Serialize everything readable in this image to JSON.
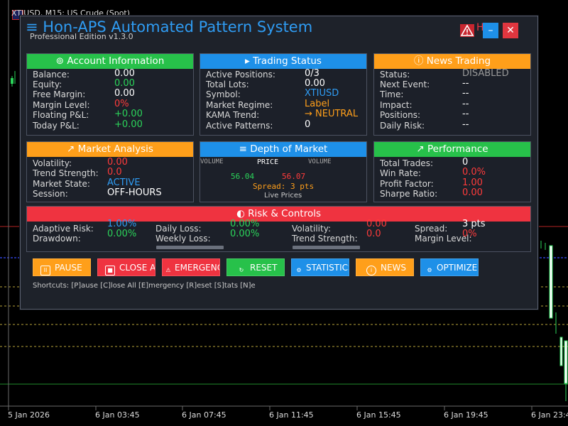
{
  "chart": {
    "title": "XTIUSD, M15:  US Crude (Spot)",
    "time_labels": [
      "5 Jan 2026",
      "6 Jan 03:45",
      "6 Jan 07:45",
      "6 Jan 11:45",
      "6 Jan 15:45",
      "6 Jan 19:45",
      "6 Jan 23:4"
    ]
  },
  "panel": {
    "menu_icon": "≡",
    "title": "Hon-APS Automated Pattern System",
    "subtitle": "Professional Edition v1.3.0",
    "alert_icon": "warning-icon",
    "header_overlap_text": "H",
    "minimize_glyph": "–",
    "close_glyph": "✕"
  },
  "account": {
    "title": "Account Information",
    "rows": [
      {
        "label": "Balance:",
        "value": "0.00",
        "color": "#ffffff"
      },
      {
        "label": "Equity:",
        "value": "0.00",
        "color": "#2bd45a"
      },
      {
        "label": "Free Margin:",
        "value": "0.00",
        "color": "#ffffff"
      },
      {
        "label": "Margin Level:",
        "value": "0%",
        "color": "#ff3b3b"
      },
      {
        "label": "Floating P&L:",
        "value": "+0.00",
        "color": "#2bd45a"
      },
      {
        "label": "Today P&L:",
        "value": "+0.00",
        "color": "#2bd45a"
      }
    ]
  },
  "trading": {
    "title": "Trading Status",
    "rows": [
      {
        "label": "Active Positions:",
        "value": "0/3",
        "color": "#ffffff"
      },
      {
        "label": "Total Lots:",
        "value": "0.00",
        "color": "#ffffff"
      },
      {
        "label": "Symbol:",
        "value": "XTIUSD",
        "color": "#2f9cf3"
      },
      {
        "label": "Market Regime:",
        "value": "Label",
        "color": "#ff9f1a"
      },
      {
        "label": "KAMA Trend:",
        "value": "→ NEUTRAL",
        "color": "#ff9f1a"
      },
      {
        "label": "Active Patterns:",
        "value": "0",
        "color": "#ffffff"
      }
    ]
  },
  "news": {
    "title": "News Trading",
    "rows": [
      {
        "label": "Status:",
        "value": "DISABLED",
        "color": "#9a9a9a"
      },
      {
        "label": "Next Event:",
        "value": "--",
        "color": "#ffffff"
      },
      {
        "label": "Time:",
        "value": "--",
        "color": "#ffffff"
      },
      {
        "label": "Impact:",
        "value": "--",
        "color": "#ffffff"
      },
      {
        "label": "Positions:",
        "value": "--",
        "color": "#ffffff"
      },
      {
        "label": "Daily Risk:",
        "value": "--",
        "color": "#ffffff"
      }
    ]
  },
  "market": {
    "title": "Market Analysis",
    "rows": [
      {
        "label": "Volatility:",
        "value": "0.00",
        "color": "#ff3b3b"
      },
      {
        "label": "Trend Strength:",
        "value": "0.0",
        "color": "#ff3b3b"
      },
      {
        "label": "Market State:",
        "value": "ACTIVE",
        "color": "#2f9cf3"
      },
      {
        "label": "Session:",
        "value": "OFF-HOURS",
        "color": "#ffffff"
      }
    ]
  },
  "depth": {
    "title": "Depth of Market",
    "col_volume_left": "VOLUME",
    "col_price": "PRICE",
    "col_volume_right": "VOLUME",
    "bid": "56.04",
    "ask": "56.07",
    "spread": "Spread: 3 pts",
    "footer": "Live Prices"
  },
  "performance": {
    "title": "Performance",
    "rows": [
      {
        "label": "Total Trades:",
        "value": "0",
        "color": "#ffffff"
      },
      {
        "label": "Win Rate:",
        "value": "0.0%",
        "color": "#ff3b3b"
      },
      {
        "label": "Profit Factor:",
        "value": "1.00",
        "color": "#ff3b3b"
      },
      {
        "label": "Sharpe Ratio:",
        "value": "0.00",
        "color": "#ff3b3b"
      }
    ]
  },
  "risk": {
    "title": "Risk & Controls",
    "adaptive_label": "Adaptive Risk:",
    "adaptive_value": "1.00%",
    "drawdown_label": "Drawdown:",
    "drawdown_value": "0.00%",
    "daily_loss_label": "Daily Loss:",
    "daily_loss_value": "0.00%",
    "weekly_loss_label": "Weekly Loss:",
    "weekly_loss_value": "0.00%",
    "volatility_label": "Volatility:",
    "volatility_value": "0.00",
    "trend_label": "Trend Strength:",
    "trend_value": "0.0",
    "spread_label": "Spread:",
    "spread_value": "3 pts",
    "margin_label": "Margin Level:",
    "margin_value": "0%"
  },
  "buttons": [
    {
      "label": "PAUSE",
      "icon": "pause-icon",
      "glyph": "II",
      "color": "#ff9f1a"
    },
    {
      "label": "CLOSE ALL",
      "icon": "stop-icon",
      "glyph": "■",
      "color": "#ef3340"
    },
    {
      "label": "EMERGENCY",
      "icon": "warning-icon",
      "glyph": "!",
      "color": "#ef3340"
    },
    {
      "label": "RESET",
      "icon": "refresh-icon",
      "glyph": "↻",
      "color": "#27c14a"
    },
    {
      "label": "STATISTICS",
      "icon": "gear-icon",
      "glyph": "⚙",
      "color": "#1e90e8"
    },
    {
      "label": "NEWS",
      "icon": "info-icon",
      "glyph": "i",
      "color": "#ff9f1a"
    },
    {
      "label": "OPTIMIZE",
      "icon": "gear-icon",
      "glyph": "⚙",
      "color": "#1e90e8"
    }
  ],
  "shortcuts": "Shortcuts: [P]ause [C]lose All [E]mergency [R]eset [S]tats [N]e"
}
